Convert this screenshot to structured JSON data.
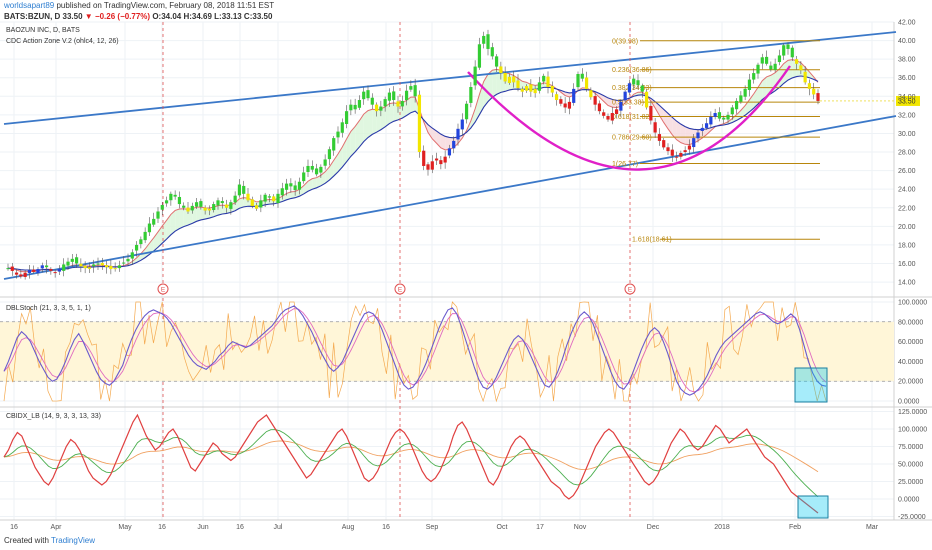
{
  "header": {
    "user": "worldsapart89",
    "published": "published on TradingView.com, February 08, 2018 11:51 EST",
    "symbol": "BATS:BZUN, D",
    "last": "33.50",
    "change": "▼ −0.26 (−0.77%)",
    "ohlc": "O:34.04 H:34.69 L:33.13 C:33.50"
  },
  "footer": {
    "created": "Created with",
    "brand": "TradingView"
  },
  "colors": {
    "up": "#33cc33",
    "down": "#e02020",
    "hold": "#f2e600",
    "sell": "#2244dd",
    "trend": "#3b78c8",
    "arc": "#e020c8",
    "fib": "#b8860b",
    "stoch": "#6a5acd",
    "cbi": "#e04040",
    "last": "#f2e600"
  },
  "chart_data": [
    {
      "type": "candlestick",
      "title": "BAOZUN INC, D, BATS",
      "indicator": "CDC Action Zone V.2 (ohlc4, 12, 26)",
      "last_price": 33.5,
      "ylim": [
        12.5,
        42
      ],
      "y_ticks": [
        "14.00",
        "16.00",
        "18.00",
        "20.00",
        "22.00",
        "24.00",
        "26.00",
        "28.00",
        "30.00",
        "32.00",
        "34.00",
        "36.00",
        "38.00",
        "40.00",
        "42.00"
      ],
      "x_ticks": [
        "16",
        "Apr",
        "May",
        "16",
        "Jun",
        "16",
        "Jul",
        "Aug",
        "16",
        "Sep",
        "Oct",
        "17",
        "Nov",
        "Dec",
        "2018",
        "Feb",
        "Mar"
      ],
      "earnings_markers": [
        "E",
        "E",
        "E"
      ],
      "fib_levels": [
        {
          "label": "0(39.98)",
          "value": 39.98
        },
        {
          "label": "0.236(36.86)",
          "value": 36.86
        },
        {
          "label": "0.382(34.93)",
          "value": 34.93
        },
        {
          "label": "0.5(33.38)",
          "value": 33.38
        },
        {
          "label": "0.618(31.82)",
          "value": 31.82
        },
        {
          "label": "0.786(29.60)",
          "value": 29.6
        },
        {
          "label": "1(26.77)",
          "value": 26.77
        },
        {
          "label": "1.618(18.61)",
          "value": 18.61
        }
      ],
      "closes": [
        15.5,
        15.2,
        14.8,
        14.6,
        15.0,
        15.3,
        15.1,
        15.4,
        15.8,
        15.6,
        15.2,
        15.0,
        15.4,
        15.9,
        16.2,
        16.5,
        16.0,
        15.7,
        15.5,
        15.6,
        15.9,
        16.0,
        15.8,
        15.6,
        15.4,
        15.5,
        15.8,
        16.1,
        16.5,
        17.2,
        18.0,
        18.6,
        19.4,
        20.3,
        20.8,
        21.6,
        22.3,
        22.8,
        23.5,
        23.2,
        22.4,
        22.0,
        21.6,
        22.2,
        22.6,
        22.1,
        21.7,
        21.9,
        22.4,
        22.8,
        22.5,
        22.0,
        22.6,
        23.3,
        24.5,
        23.5,
        22.8,
        22.2,
        21.9,
        22.8,
        23.4,
        23.1,
        22.7,
        23.5,
        24.1,
        24.6,
        24.3,
        23.9,
        24.8,
        25.8,
        26.5,
        26.1,
        25.6,
        26.4,
        27.2,
        28.3,
        29.5,
        30.2,
        31.2,
        32.4,
        33.1,
        32.6,
        33.6,
        34.5,
        33.8,
        33.1,
        32.4,
        32.9,
        33.7,
        34.4,
        33.6,
        32.9,
        33.5,
        34.6,
        35.1,
        34.0,
        28.0,
        26.5,
        26.1,
        27.0,
        27.3,
        26.7,
        27.5,
        28.4,
        29.2,
        30.5,
        31.5,
        33.2,
        35.0,
        37.2,
        39.6,
        40.5,
        39.1,
        38.3,
        37.2,
        36.5,
        35.6,
        36.1,
        35.5,
        34.9,
        34.5,
        35.1,
        34.5,
        34.8,
        35.5,
        36.2,
        35.0,
        34.4,
        33.6,
        33.2,
        32.8,
        33.4,
        34.8,
        36.4,
        35.9,
        34.8,
        33.9,
        33.1,
        32.4,
        31.9,
        31.5,
        32.2,
        32.6,
        33.4,
        34.5,
        35.4,
        35.9,
        35.2,
        34.5,
        32.8,
        31.4,
        30.1,
        29.2,
        28.5,
        28.1,
        27.6,
        27.5,
        27.9,
        28.2,
        28.7,
        29.5,
        30.1,
        30.6,
        31.1,
        31.8,
        32.2,
        31.6,
        31.5,
        32.0,
        32.8,
        33.5,
        34.1,
        34.8,
        35.8,
        36.5,
        37.4,
        38.2,
        37.5,
        36.9,
        37.5,
        38.4,
        39.5,
        39.1,
        38.2,
        37.5,
        36.8,
        35.5,
        34.8,
        34.2,
        33.5
      ]
    },
    {
      "type": "line",
      "title": "DBLStoch (21, 3, 3, 5, 1, 1)",
      "ylim": [
        -5,
        104
      ],
      "y_ticks": [
        "0.0000",
        "20.0000",
        "40.0000",
        "60.0000",
        "80.0000",
        "100.0000"
      ],
      "values": [
        30,
        40,
        52,
        64,
        70,
        66,
        60,
        50,
        40,
        32,
        24,
        20,
        22,
        30,
        40,
        52,
        62,
        68,
        60,
        50,
        40,
        30,
        22,
        18,
        16,
        20,
        28,
        36,
        50,
        62,
        72,
        80,
        86,
        90,
        92,
        90,
        88,
        84,
        78,
        70,
        62,
        54,
        46,
        40,
        36,
        34,
        32,
        36,
        40,
        46,
        50,
        56,
        60,
        58,
        56,
        54,
        56,
        60,
        64,
        68,
        72,
        76,
        82,
        88,
        92,
        94,
        96,
        92,
        86,
        78,
        70,
        60,
        50,
        42,
        34,
        30,
        34,
        40,
        50,
        60,
        70,
        80,
        88,
        90,
        88,
        82,
        72,
        60,
        48,
        36,
        24,
        16,
        12,
        14,
        20,
        28,
        38,
        50,
        62,
        74,
        84,
        92,
        94,
        88,
        76,
        62,
        48,
        34,
        22,
        14,
        12,
        16,
        24,
        34,
        44,
        54,
        62,
        66,
        62,
        54,
        44,
        34,
        24,
        16,
        14,
        20,
        30,
        42,
        56,
        68,
        78,
        86,
        90,
        86,
        78,
        66,
        54,
        42,
        30,
        20,
        14,
        12,
        18,
        28,
        40,
        52,
        62,
        70,
        74,
        70,
        60,
        48,
        34,
        20,
        12,
        8,
        6,
        8,
        12,
        18,
        26,
        36,
        46,
        54,
        60,
        64,
        68,
        72,
        76,
        80,
        84,
        88,
        90,
        88,
        84,
        80,
        78,
        80,
        84,
        88,
        84,
        72,
        56,
        40,
        28,
        20,
        16,
        15
      ],
      "annotations": [
        "highlight"
      ]
    },
    {
      "type": "line",
      "title": "CBIDX_LB (14, 9, 3, 3, 13, 33)",
      "ylim": [
        -30,
        130
      ],
      "y_ticks": [
        "-25.0000",
        "0.0000",
        "25.0000",
        "50.0000",
        "75.0000",
        "100.0000",
        "125.0000"
      ],
      "values": [
        60,
        70,
        85,
        95,
        90,
        75,
        60,
        45,
        35,
        25,
        20,
        30,
        45,
        60,
        75,
        85,
        80,
        70,
        55,
        40,
        30,
        25,
        20,
        25,
        35,
        50,
        65,
        80,
        95,
        110,
        120,
        105,
        90,
        80,
        70,
        75,
        85,
        95,
        100,
        90,
        75,
        60,
        45,
        40,
        50,
        60,
        70,
        80,
        75,
        65,
        60,
        55,
        60,
        70,
        80,
        90,
        100,
        110,
        115,
        120,
        110,
        100,
        90,
        80,
        70,
        60,
        50,
        40,
        30,
        35,
        45,
        55,
        65,
        75,
        85,
        95,
        100,
        90,
        75,
        60,
        45,
        30,
        25,
        30,
        40,
        55,
        70,
        85,
        95,
        100,
        95,
        85,
        70,
        55,
        40,
        30,
        25,
        30,
        40,
        55,
        70,
        90,
        105,
        110,
        100,
        85,
        70,
        55,
        40,
        25,
        20,
        30,
        45,
        60,
        75,
        85,
        90,
        85,
        75,
        65,
        55,
        45,
        35,
        25,
        20,
        15,
        5,
        0,
        5,
        15,
        30,
        45,
        60,
        75,
        85,
        95,
        100,
        95,
        85,
        75,
        65,
        55,
        45,
        35,
        25,
        20,
        25,
        35,
        50,
        65,
        80,
        90,
        100,
        95,
        85,
        75,
        70,
        75,
        85,
        95,
        105,
        100,
        90,
        80,
        85,
        90,
        95,
        100,
        90,
        80,
        70,
        60,
        55,
        50,
        40,
        30,
        20,
        10,
        5,
        0,
        -5,
        -10,
        -15,
        -20
      ]
    }
  ]
}
